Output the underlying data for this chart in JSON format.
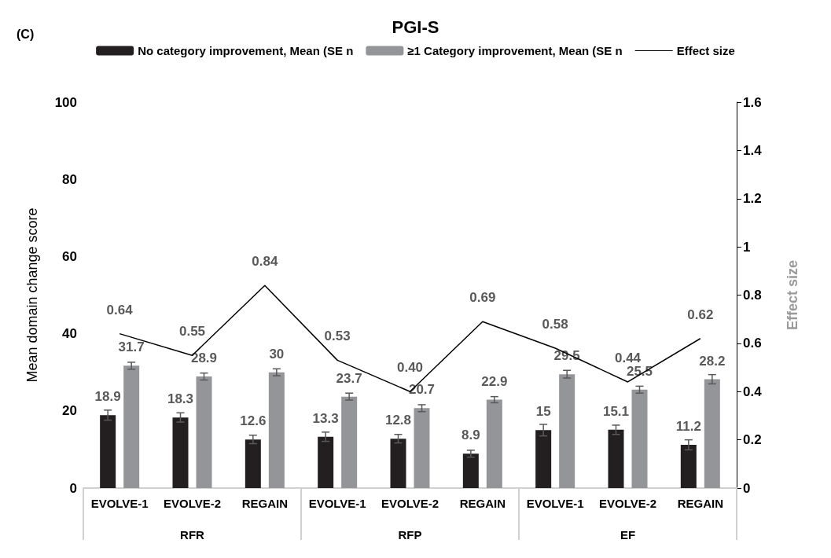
{
  "chart_data": {
    "type": "bar",
    "title": "PGI-S",
    "subtitle": "(C)",
    "ylabel": "Mean domain change score",
    "y2label": "Effect size",
    "categories": [
      "EVOLVE-1",
      "EVOLVE-2",
      "REGAIN",
      "EVOLVE-1",
      "EVOLVE-2",
      "REGAIN",
      "EVOLVE-1",
      "EVOLVE-2",
      "REGAIN"
    ],
    "annotations": [
      "RFR",
      "RFP",
      "EF"
    ],
    "series": [
      {
        "name": "No category improvement, Mean (SE n",
        "color": "#231f20",
        "values": [
          18.9,
          18.3,
          12.6,
          13.3,
          12.8,
          8.9,
          15,
          15.1,
          11.2
        ],
        "errors": [
          1.3,
          1.2,
          1.1,
          1.2,
          1.1,
          0.9,
          1.5,
          1.2,
          1.3
        ]
      },
      {
        "name": "≥1 Category improvement, Mean (SE n",
        "color": "#939598",
        "values": [
          31.7,
          28.9,
          30,
          23.7,
          20.7,
          22.9,
          29.5,
          25.5,
          28.2
        ],
        "errors": [
          0.9,
          0.9,
          0.9,
          0.9,
          0.9,
          0.8,
          1.0,
          0.9,
          1.2
        ]
      },
      {
        "name": "Effect size",
        "type": "line",
        "axis": "y2",
        "color": "#000000",
        "values": [
          0.64,
          0.55,
          0.84,
          0.53,
          0.4,
          0.69,
          0.58,
          0.44,
          0.62
        ],
        "value_labels": [
          "0.64",
          "0.55",
          "0.84",
          "0.53",
          "0.40",
          "0.69",
          "0.58",
          "0.44",
          "0.62"
        ]
      }
    ],
    "data_labels": true,
    "legend": "top",
    "marker": "none",
    "grid": false,
    "ylim": [
      0,
      100
    ],
    "yticks": [
      0,
      20,
      40,
      60,
      80,
      100
    ],
    "y2lim": [
      0,
      1.6
    ],
    "y2ticks": [
      0,
      0.2,
      0.4,
      0.6,
      0.8,
      1,
      1.2,
      1.4,
      1.6
    ]
  }
}
